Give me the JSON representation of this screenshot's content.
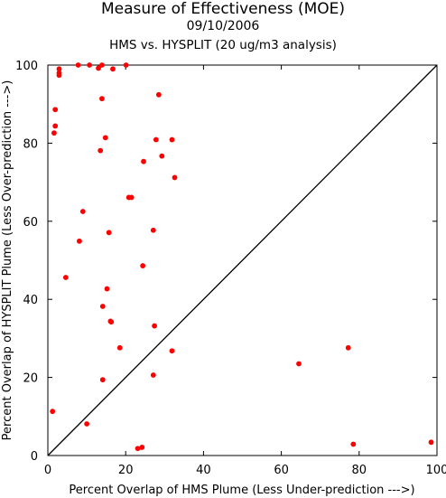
{
  "chart_data": {
    "type": "scatter",
    "title": "Measure of Effectiveness (MOE)",
    "subtitle": "09/10/2006",
    "subtitle2": "HMS vs. HYSPLIT  (20 ug/m3 analysis)",
    "xlabel": "Percent Overlap of HMS Plume (Less Under-prediction --->)",
    "ylabel": "Percent Overlap of HYSPLIT Plume (Less Over-prediction --->)",
    "xlim": [
      0,
      100
    ],
    "ylim": [
      0,
      100
    ],
    "xticks": [
      "0",
      "20",
      "40",
      "60",
      "80",
      "100"
    ],
    "yticks": [
      "0",
      "20",
      "40",
      "60",
      "80",
      "100"
    ],
    "point_color": "#ff0000",
    "reference_line": "1:1 diagonal",
    "grid": false,
    "points": [
      {
        "x": 7.8,
        "y": 100
      },
      {
        "x": 10.7,
        "y": 100
      },
      {
        "x": 13.9,
        "y": 100
      },
      {
        "x": 20.1,
        "y": 100
      },
      {
        "x": 2.9,
        "y": 99
      },
      {
        "x": 13,
        "y": 99.2
      },
      {
        "x": 16.7,
        "y": 99
      },
      {
        "x": 2.9,
        "y": 98
      },
      {
        "x": 2.9,
        "y": 97.4
      },
      {
        "x": 28.5,
        "y": 92.4
      },
      {
        "x": 13.9,
        "y": 91.4
      },
      {
        "x": 1.9,
        "y": 88.6
      },
      {
        "x": 1.9,
        "y": 84.4
      },
      {
        "x": 1.6,
        "y": 82.6
      },
      {
        "x": 14.8,
        "y": 81.4
      },
      {
        "x": 27.8,
        "y": 80.9
      },
      {
        "x": 31.9,
        "y": 80.9
      },
      {
        "x": 13.5,
        "y": 78.1
      },
      {
        "x": 29.3,
        "y": 76.7
      },
      {
        "x": 24.6,
        "y": 75.3
      },
      {
        "x": 32.6,
        "y": 71.2
      },
      {
        "x": 20.8,
        "y": 66.1
      },
      {
        "x": 21.5,
        "y": 66.1
      },
      {
        "x": 9,
        "y": 62.5
      },
      {
        "x": 27.1,
        "y": 57.7
      },
      {
        "x": 15.7,
        "y": 57.1
      },
      {
        "x": 8.1,
        "y": 54.9
      },
      {
        "x": 24.4,
        "y": 48.6
      },
      {
        "x": 4.6,
        "y": 45.6
      },
      {
        "x": 15.2,
        "y": 42.7
      },
      {
        "x": 14.1,
        "y": 38.2
      },
      {
        "x": 16.1,
        "y": 34.4
      },
      {
        "x": 16.3,
        "y": 34.2
      },
      {
        "x": 27.4,
        "y": 33.2
      },
      {
        "x": 18.5,
        "y": 27.6
      },
      {
        "x": 31.9,
        "y": 26.8
      },
      {
        "x": 77.2,
        "y": 27.6
      },
      {
        "x": 64.5,
        "y": 23.5
      },
      {
        "x": 27.1,
        "y": 20.6
      },
      {
        "x": 14.1,
        "y": 19.4
      },
      {
        "x": 1.2,
        "y": 11.3
      },
      {
        "x": 10,
        "y": 8.1
      },
      {
        "x": 78.5,
        "y": 2.9
      },
      {
        "x": 98.5,
        "y": 3.4
      },
      {
        "x": 23.1,
        "y": 1.8
      },
      {
        "x": 24.2,
        "y": 2.1
      }
    ]
  }
}
